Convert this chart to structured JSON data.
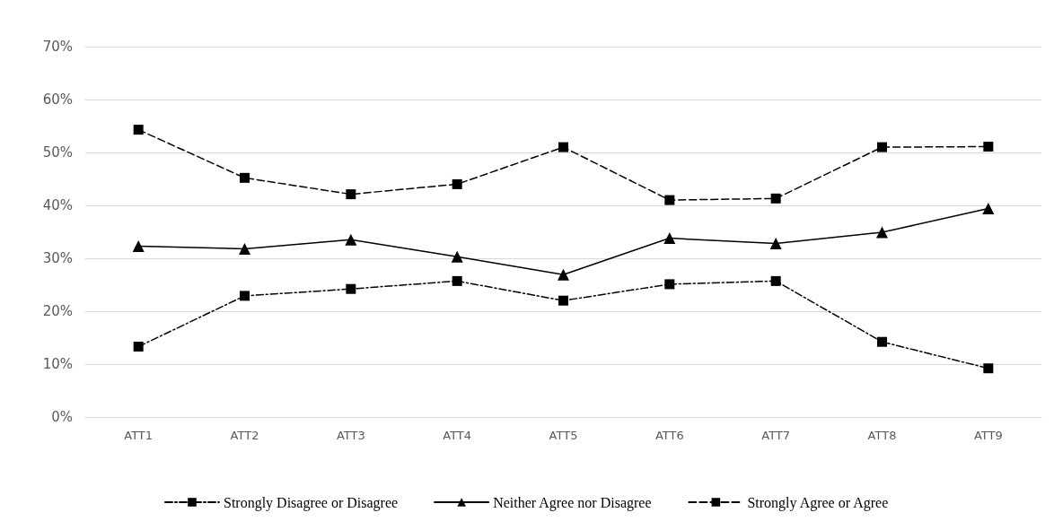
{
  "chart_data": {
    "type": "line",
    "categories": [
      "ATT1",
      "ATT2",
      "ATT3",
      "ATT4",
      "ATT5",
      "ATT6",
      "ATT7",
      "ATT8",
      "ATT9"
    ],
    "series": [
      {
        "name": "Strongly Disagree or Disagree",
        "color": "#000000",
        "marker": "square",
        "line_style": "dotted",
        "values": [
          13.3,
          22.9,
          24.2,
          25.7,
          22.0,
          25.1,
          25.7,
          14.2,
          9.2
        ]
      },
      {
        "name": "Neither Agree nor Disagree",
        "color": "#000000",
        "marker": "triangle",
        "line_style": "solid",
        "values": [
          32.3,
          31.8,
          33.5,
          30.3,
          26.9,
          33.8,
          32.8,
          34.9,
          39.4
        ]
      },
      {
        "name": "Strongly Agree or Agree",
        "color": "#000000",
        "marker": "square",
        "line_style": "dashed",
        "values": [
          54.3,
          45.2,
          42.1,
          44.0,
          51.0,
          41.0,
          41.3,
          51.0,
          51.1
        ]
      }
    ],
    "ylim": [
      0,
      70
    ],
    "yticks": [
      {
        "value": 0,
        "label": "0%"
      },
      {
        "value": 10,
        "label": "10%"
      },
      {
        "value": 20,
        "label": "20%"
      },
      {
        "value": 30,
        "label": "30%"
      },
      {
        "value": 40,
        "label": "40%"
      },
      {
        "value": 50,
        "label": "50%"
      },
      {
        "value": 60,
        "label": "60%"
      },
      {
        "value": 70,
        "label": "70%"
      }
    ],
    "grid": "y",
    "legend": "bottom"
  }
}
